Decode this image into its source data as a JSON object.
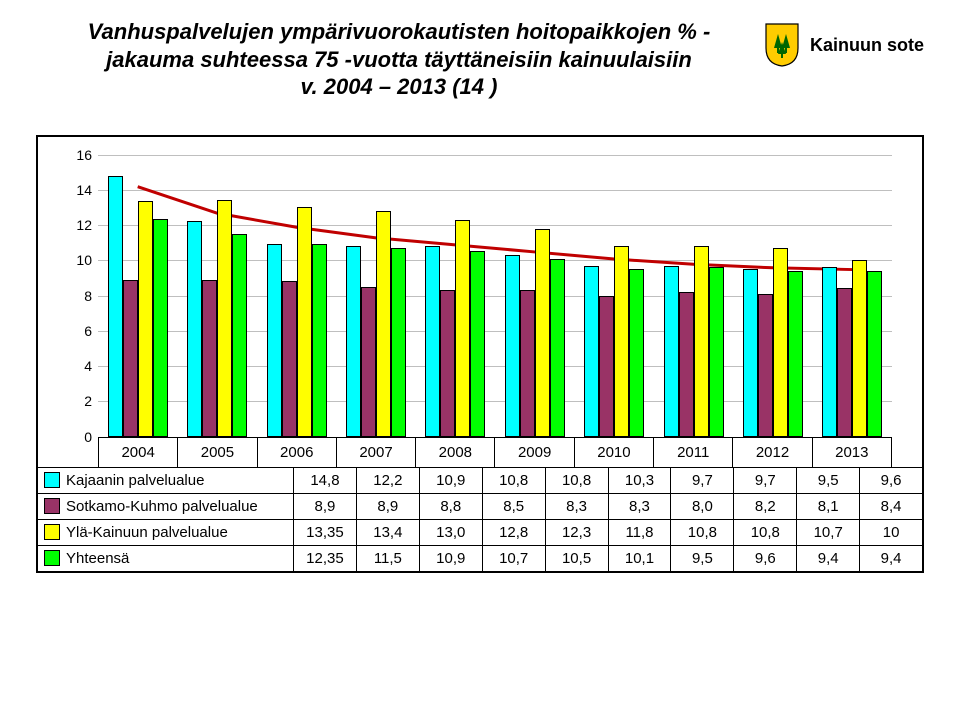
{
  "header": {
    "title_line1": "Vanhuspalvelujen ympärivuorokautisten hoitopaikkojen % -",
    "title_line2": "jakauma suhteessa 75 -vuotta täyttäneisiin kainuulaisiin",
    "title_line3": "v. 2004 – 2013 (14 )",
    "brand": "Kainuun sote"
  },
  "chart": {
    "type": "bar+line",
    "years": [
      "2004",
      "2005",
      "2006",
      "2007",
      "2008",
      "2009",
      "2010",
      "2011",
      "2012",
      "2013"
    ],
    "ymin": 0,
    "ymax": 16,
    "ytick_step": 2,
    "grid_color": "#bfbfbf",
    "axis_color": "#000000",
    "trend_color": "#c00000",
    "trend_width": 3,
    "series": [
      {
        "name": "Kajaanin palvelualue",
        "color": "#00ffff",
        "values": [
          14.8,
          12.2,
          10.9,
          10.8,
          10.8,
          10.3,
          9.7,
          9.7,
          9.5,
          9.6
        ]
      },
      {
        "name": "Sotkamo-Kuhmo palvelualue",
        "color": "#993366",
        "values": [
          8.9,
          8.9,
          8.8,
          8.5,
          8.3,
          8.3,
          8.0,
          8.2,
          8.1,
          8.4
        ]
      },
      {
        "name": "Ylä-Kainuun palvelualue",
        "color": "#ffff00",
        "values": [
          13.35,
          13.4,
          13.0,
          12.8,
          12.3,
          11.8,
          10.8,
          10.8,
          10.7,
          10.0
        ]
      },
      {
        "name": "Yhteensä",
        "color": "#00ff00",
        "values": [
          12.35,
          11.5,
          10.9,
          10.7,
          10.5,
          10.1,
          9.5,
          9.6,
          9.4,
          9.4
        ]
      }
    ],
    "trend": [
      14.2,
      12.7,
      11.9,
      11.3,
      10.9,
      10.5,
      10.1,
      9.8,
      9.6,
      9.5
    ]
  },
  "table": {
    "rows": [
      {
        "label": "Kajaanin palvelualue",
        "swatch": "#00ffff",
        "cells": [
          "14,8",
          "12,2",
          "10,9",
          "10,8",
          "10,8",
          "10,3",
          "9,7",
          "9,7",
          "9,5",
          "9,6"
        ]
      },
      {
        "label": "Sotkamo-Kuhmo palvelualue",
        "swatch": "#993366",
        "cells": [
          "8,9",
          "8,9",
          "8,8",
          "8,5",
          "8,3",
          "8,3",
          "8,0",
          "8,2",
          "8,1",
          "8,4"
        ]
      },
      {
        "label": "Ylä-Kainuun palvelualue",
        "swatch": "#ffff00",
        "cells": [
          "13,35",
          "13,4",
          "13,0",
          "12,8",
          "12,3",
          "11,8",
          "10,8",
          "10,8",
          "10,7",
          "10"
        ]
      },
      {
        "label": "Yhteensä",
        "swatch": "#00ff00",
        "cells": [
          "12,35",
          "11,5",
          "10,9",
          "10,7",
          "10,5",
          "10,1",
          "9,5",
          "9,6",
          "9,4",
          "9,4"
        ]
      }
    ]
  },
  "logo": {
    "shield_bg": "#ffcc00",
    "shield_border": "#000000",
    "trees": "#006600"
  }
}
